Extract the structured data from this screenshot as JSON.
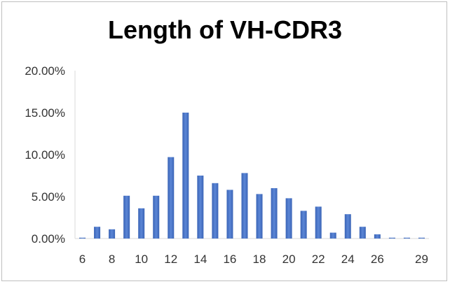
{
  "chart_data": {
    "type": "bar",
    "title": "Length of VH-CDR3",
    "xlabel": "",
    "ylabel": "",
    "categories": [
      "6",
      "7",
      "8",
      "9",
      "10",
      "11",
      "12",
      "13",
      "14",
      "15",
      "16",
      "17",
      "18",
      "19",
      "20",
      "21",
      "22",
      "23",
      "24",
      "25",
      "26",
      "27",
      "28",
      "29"
    ],
    "x_tick_labels": [
      "6",
      "8",
      "10",
      "12",
      "14",
      "16",
      "18",
      "20",
      "22",
      "24",
      "26",
      "29"
    ],
    "x_tick_categories": [
      "6",
      "8",
      "10",
      "12",
      "14",
      "16",
      "18",
      "20",
      "22",
      "24",
      "26",
      "29"
    ],
    "values": [
      0.1,
      1.4,
      1.1,
      5.1,
      3.6,
      5.1,
      9.7,
      15.0,
      7.5,
      6.6,
      5.8,
      7.8,
      5.3,
      6.0,
      4.8,
      3.3,
      3.8,
      0.7,
      2.9,
      1.4,
      0.5,
      0.1,
      0.1,
      0.1
    ],
    "y_unit": "percent",
    "ylim": [
      0,
      20
    ],
    "y_ticks": [
      0,
      5,
      10,
      15,
      20
    ],
    "y_tick_labels": [
      "0.00%",
      "5.00%",
      "10.00%",
      "15.00%",
      "20.00%"
    ],
    "grid": false,
    "legend": "none",
    "bar_color": "#4472c4"
  }
}
